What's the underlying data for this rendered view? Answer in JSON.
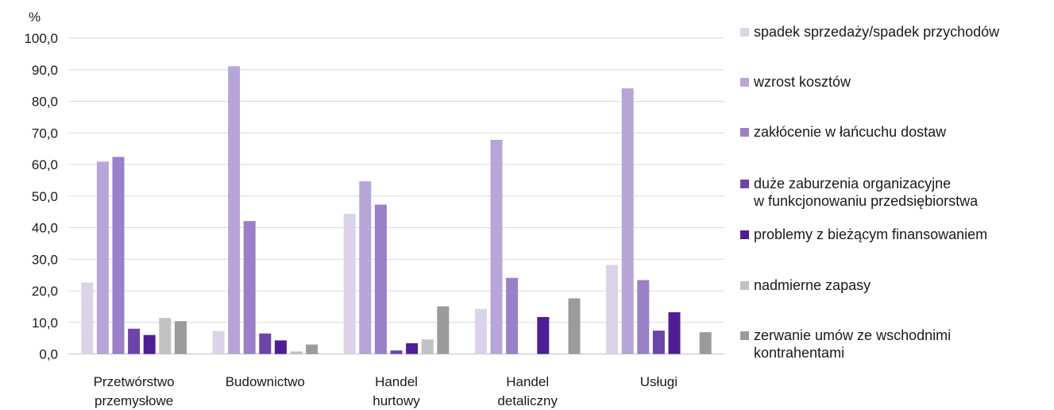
{
  "chart_data": {
    "type": "bar",
    "ylabel": "%",
    "ylim": [
      0,
      100
    ],
    "yticks": [
      "0,0",
      "10,0",
      "20,0",
      "30,0",
      "40,0",
      "50,0",
      "60,0",
      "70,0",
      "80,0",
      "90,0",
      "100,0"
    ],
    "categories": [
      [
        "Przetwórstwo",
        "przemysłowe"
      ],
      [
        "Budownictwo"
      ],
      [
        "Handel",
        "hurtowy"
      ],
      [
        "Handel",
        "detaliczny"
      ],
      [
        "Usługi"
      ]
    ],
    "grid": true,
    "legend_position": "right",
    "series": [
      {
        "name": [
          "spadek sprzedaży/spadek przychodów"
        ],
        "color": "#dcd3ea",
        "values": [
          22.6,
          7.3,
          44.4,
          14.3,
          28.2
        ]
      },
      {
        "name": [
          "wzrost kosztów"
        ],
        "color": "#b7a5d8",
        "values": [
          60.9,
          91.1,
          54.7,
          67.8,
          84.1
        ]
      },
      {
        "name": [
          "zakłócenie w łańcuchu dostaw"
        ],
        "color": "#9a80c7",
        "values": [
          62.4,
          42.1,
          47.3,
          24.1,
          23.4
        ]
      },
      {
        "name": [
          "duże zaburzenia organizacyjne",
          "w funkcjonowaniu przedsiębiorstwa"
        ],
        "color": "#6c45a8",
        "values": [
          8.0,
          6.5,
          1.1,
          null,
          7.4
        ]
      },
      {
        "name": [
          "problemy z bieżącym finansowaniem"
        ],
        "color": "#4f1e94",
        "values": [
          6.0,
          4.3,
          3.4,
          11.7,
          13.2
        ]
      },
      {
        "name": [
          "nadmierne zapasy"
        ],
        "color": "#c2c2c2",
        "values": [
          11.4,
          0.8,
          4.6,
          null,
          null
        ]
      },
      {
        "name": [
          "zerwanie umów ze wschodnimi",
          "kontrahentami"
        ],
        "color": "#9b9b9b",
        "values": [
          10.4,
          3.0,
          15.1,
          17.6,
          6.9
        ]
      }
    ]
  }
}
